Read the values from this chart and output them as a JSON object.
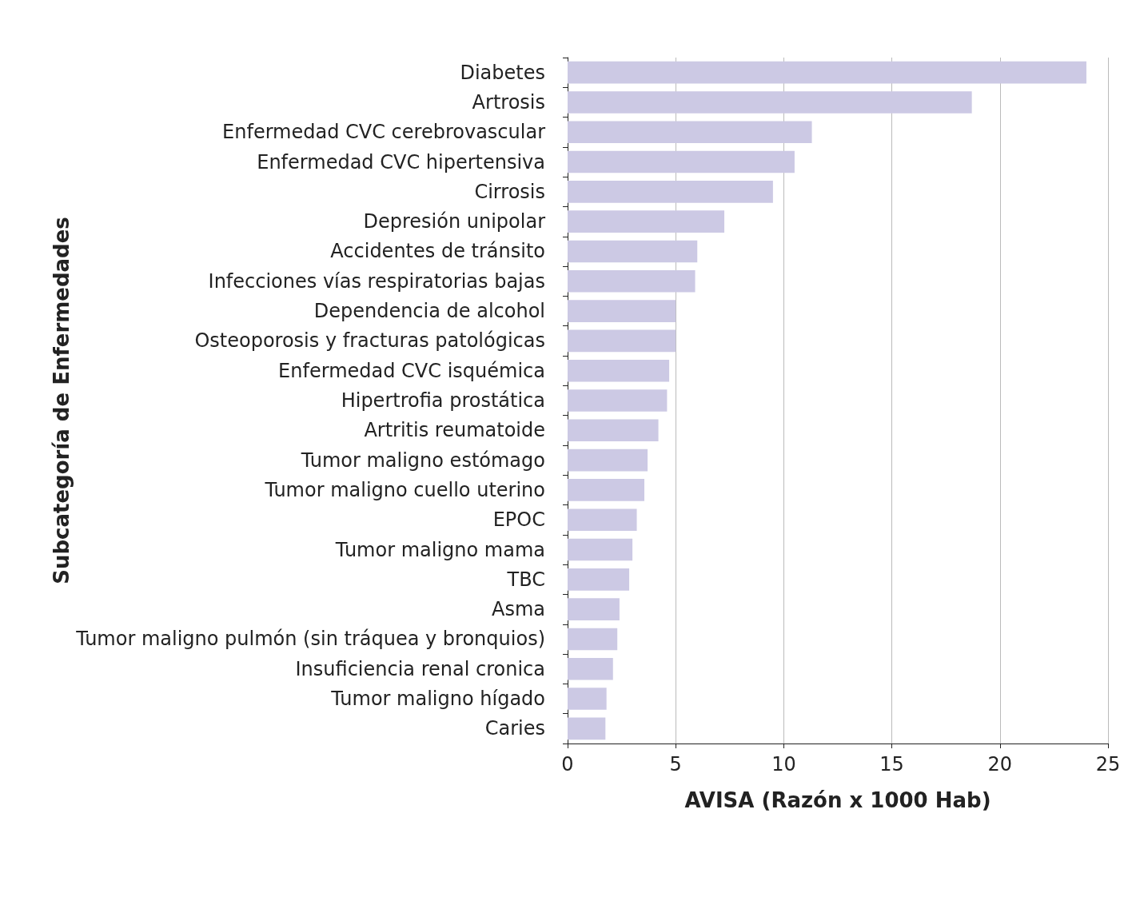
{
  "chart_data": {
    "type": "bar",
    "orientation": "horizontal",
    "xlabel": "AVISA (Razón x 1000 Hab)",
    "ylabel": "Subcategoría de Enfermedades",
    "categories": [
      "Diabetes",
      "Artrosis",
      "Enfermedad CVC cerebrovascular",
      "Enfermedad CVC hipertensiva",
      "Cirrosis",
      "Depresión unipolar",
      "Accidentes de tránsito",
      "Infecciones vías respiratorias bajas",
      "Dependencia de alcohol",
      "Osteoporosis y fracturas patológicas",
      "Enfermedad CVC isquémica",
      "Hipertrofia prostática",
      "Artritis reumatoide",
      "Tumor maligno estómago",
      "Tumor maligno cuello uterino",
      "EPOC",
      "Tumor maligno mama",
      "TBC",
      "Asma",
      "Tumor maligno pulmón (sin tráquea y bronquios)",
      "Insuficiencia renal cronica",
      "Tumor maligno hígado",
      "Caries"
    ],
    "values": [
      24.0,
      18.7,
      11.3,
      10.5,
      9.5,
      7.25,
      6.0,
      5.9,
      5.0,
      5.0,
      4.7,
      4.6,
      4.2,
      3.7,
      3.55,
      3.2,
      3.0,
      2.85,
      2.4,
      2.3,
      2.1,
      1.8,
      1.75
    ],
    "color": "#ccc9e4",
    "xlim": [
      0,
      25
    ],
    "xticks": [
      0,
      5,
      10,
      15,
      20,
      25
    ],
    "grid": "x"
  }
}
